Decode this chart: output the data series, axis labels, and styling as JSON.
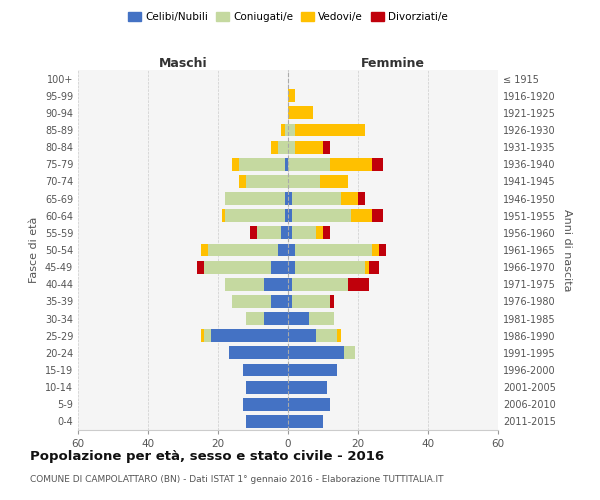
{
  "age_groups": [
    "100+",
    "95-99",
    "90-94",
    "85-89",
    "80-84",
    "75-79",
    "70-74",
    "65-69",
    "60-64",
    "55-59",
    "50-54",
    "45-49",
    "40-44",
    "35-39",
    "30-34",
    "25-29",
    "20-24",
    "15-19",
    "10-14",
    "5-9",
    "0-4"
  ],
  "birth_years": [
    "≤ 1915",
    "1916-1920",
    "1921-1925",
    "1926-1930",
    "1931-1935",
    "1936-1940",
    "1941-1945",
    "1946-1950",
    "1951-1955",
    "1956-1960",
    "1961-1965",
    "1966-1970",
    "1971-1975",
    "1976-1980",
    "1981-1985",
    "1986-1990",
    "1991-1995",
    "1996-2000",
    "2001-2005",
    "2006-2010",
    "2011-2015"
  ],
  "maschi": {
    "celibi": [
      0,
      0,
      0,
      0,
      0,
      1,
      0,
      1,
      1,
      2,
      3,
      5,
      7,
      5,
      7,
      22,
      17,
      13,
      12,
      13,
      12
    ],
    "coniugati": [
      0,
      0,
      0,
      1,
      3,
      13,
      12,
      17,
      17,
      7,
      20,
      19,
      11,
      11,
      5,
      2,
      0,
      0,
      0,
      0,
      0
    ],
    "vedovi": [
      0,
      0,
      0,
      1,
      2,
      2,
      2,
      0,
      1,
      0,
      2,
      0,
      0,
      0,
      0,
      1,
      0,
      0,
      0,
      0,
      0
    ],
    "divorziati": [
      0,
      0,
      0,
      0,
      0,
      0,
      0,
      0,
      0,
      2,
      0,
      2,
      0,
      0,
      0,
      0,
      0,
      0,
      0,
      0,
      0
    ]
  },
  "femmine": {
    "nubili": [
      0,
      0,
      0,
      0,
      0,
      0,
      0,
      1,
      1,
      1,
      2,
      2,
      1,
      1,
      6,
      8,
      16,
      14,
      11,
      12,
      10
    ],
    "coniugate": [
      0,
      0,
      0,
      2,
      2,
      12,
      9,
      14,
      17,
      7,
      22,
      20,
      16,
      11,
      7,
      6,
      3,
      0,
      0,
      0,
      0
    ],
    "vedove": [
      0,
      2,
      7,
      20,
      8,
      12,
      8,
      5,
      6,
      2,
      2,
      1,
      0,
      0,
      0,
      1,
      0,
      0,
      0,
      0,
      0
    ],
    "divorziate": [
      0,
      0,
      0,
      0,
      2,
      3,
      0,
      2,
      3,
      2,
      2,
      3,
      6,
      1,
      0,
      0,
      0,
      0,
      0,
      0,
      0
    ]
  },
  "colors": {
    "celibi": "#4472c4",
    "coniugati": "#c5d9a0",
    "vedovi": "#ffc000",
    "divorziati": "#c0000b"
  },
  "title": "Popolazione per età, sesso e stato civile - 2016",
  "subtitle": "COMUNE DI CAMPOLATTARO (BN) - Dati ISTAT 1° gennaio 2016 - Elaborazione TUTTITALIA.IT",
  "xlabel_left": "Maschi",
  "xlabel_right": "Femmine",
  "ylabel_left": "Fasce di età",
  "ylabel_right": "Anni di nascita",
  "xlim": 60,
  "bg_color": "#f5f5f5",
  "legend_labels": [
    "Celibi/Nubili",
    "Coniugati/e",
    "Vedovi/e",
    "Divorziati/e"
  ]
}
